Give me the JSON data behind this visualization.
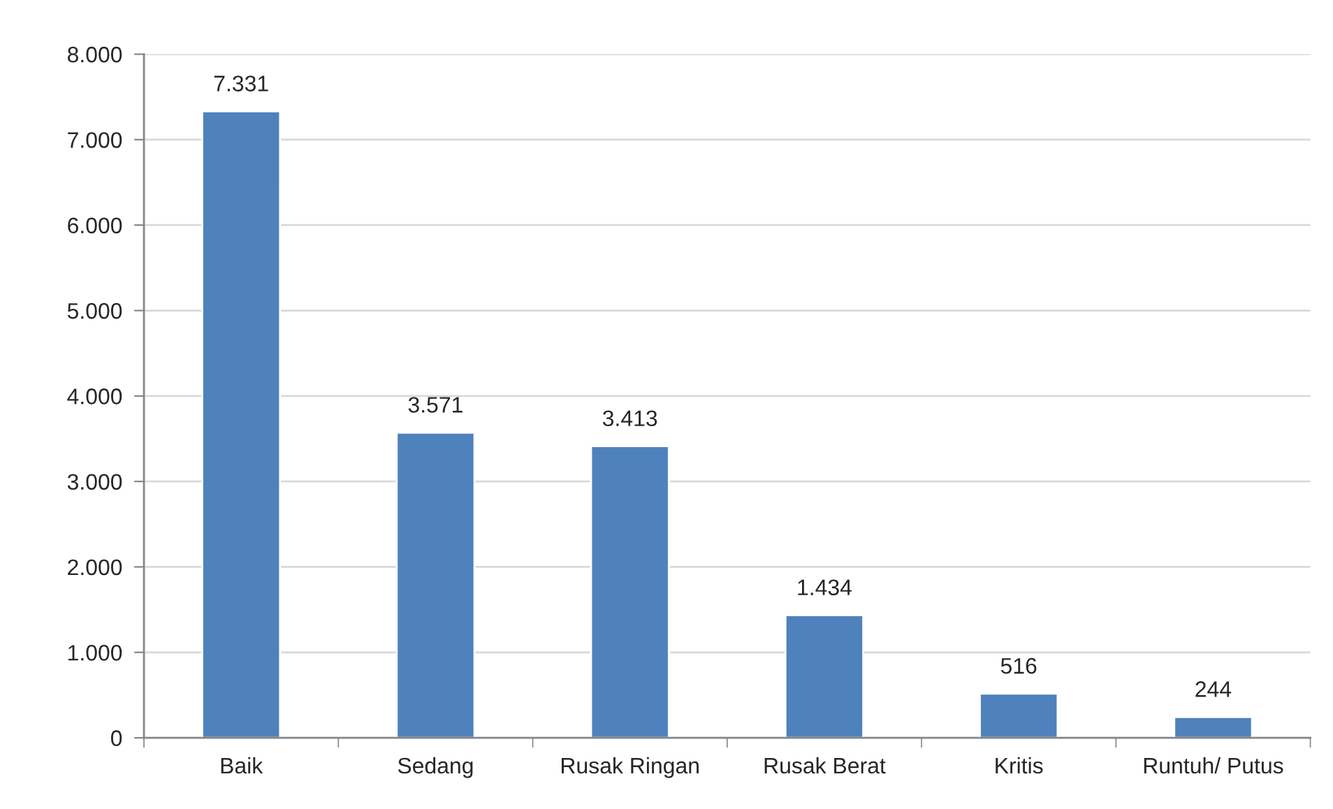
{
  "chart_data": {
    "type": "bar",
    "categories": [
      "Baik",
      "Sedang",
      "Rusak Ringan",
      "Rusak Berat",
      "Kritis",
      "Runtuh/ Putus"
    ],
    "values": [
      7331,
      3571,
      3413,
      1434,
      516,
      244
    ],
    "value_labels": [
      "7.331",
      "3.571",
      "3.413",
      "1.434",
      "516",
      "244"
    ],
    "color": "#4f81bd",
    "ylim": [
      0,
      8000
    ],
    "yticks": [
      0,
      {
        "value": 1000,
        "label": "1.000"
      },
      {
        "value": 2000,
        "label": "2.000"
      },
      {
        "value": 3000,
        "label": "3.000"
      },
      {
        "value": 4000,
        "label": "4.000"
      },
      {
        "value": 5000,
        "label": "5.000"
      },
      {
        "value": 6000,
        "label": "6.000"
      },
      {
        "value": 7000,
        "label": "7.000"
      },
      {
        "value": 8000,
        "label": "8.000"
      }
    ],
    "grid": "y",
    "legend": false
  }
}
